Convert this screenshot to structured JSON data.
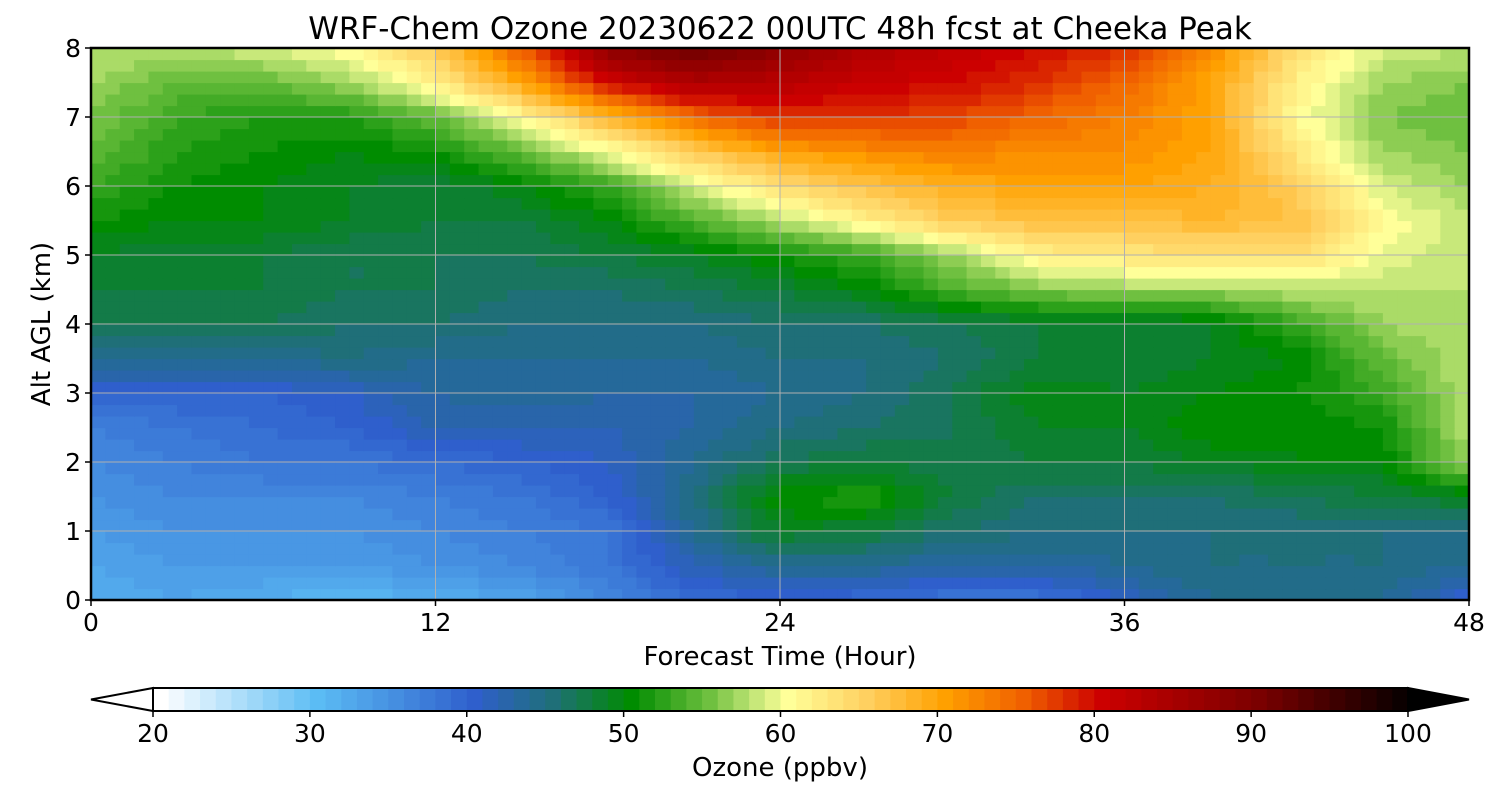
{
  "chart_data": {
    "type": "heatmap",
    "title": "WRF-Chem Ozone  20230622 00UTC 48h fcst at Cheeka Peak",
    "xlabel": "Forecast Time (Hour)",
    "ylabel": "Alt AGL (km)",
    "xlim": [
      0,
      48
    ],
    "ylim": [
      0,
      8
    ],
    "xticks": [
      0,
      12,
      24,
      36,
      48
    ],
    "yticks": [
      0,
      1,
      2,
      3,
      4,
      5,
      6,
      7,
      8
    ],
    "grid": true,
    "colorbar": {
      "label": "Ozone  (ppbv)",
      "min": 20,
      "max": 100,
      "ticks": [
        20,
        30,
        40,
        50,
        60,
        70,
        80,
        90,
        100
      ],
      "extend": "both",
      "orientation": "horizontal",
      "stops": [
        {
          "value": 20,
          "color": "#ffffff"
        },
        {
          "value": 30,
          "color": "#5bbcf4"
        },
        {
          "value": 40,
          "color": "#2f5fcc"
        },
        {
          "value": 45,
          "color": "#1f6f78"
        },
        {
          "value": 50,
          "color": "#008c00"
        },
        {
          "value": 55,
          "color": "#6fc040"
        },
        {
          "value": 58,
          "color": "#c8e87a"
        },
        {
          "value": 60,
          "color": "#ffff99"
        },
        {
          "value": 65,
          "color": "#ffd060"
        },
        {
          "value": 70,
          "color": "#ffa000"
        },
        {
          "value": 75,
          "color": "#f06000"
        },
        {
          "value": 80,
          "color": "#cc0000"
        },
        {
          "value": 90,
          "color": "#7a0000"
        },
        {
          "value": 100,
          "color": "#000000"
        }
      ]
    },
    "x": [
      0,
      3,
      6,
      9,
      12,
      15,
      18,
      21,
      24,
      27,
      30,
      33,
      36,
      39,
      42,
      45,
      48
    ],
    "y": [
      0,
      0.5,
      1,
      1.5,
      2,
      2.5,
      3,
      3.5,
      4,
      4.5,
      5,
      5.5,
      6,
      6.5,
      7,
      7.5,
      8
    ],
    "z": [
      [
        32,
        33,
        32,
        31,
        32,
        33,
        36,
        39,
        40,
        39,
        38,
        38,
        41,
        44,
        45,
        44,
        40
      ],
      [
        33,
        34,
        34,
        34,
        35,
        36,
        38,
        42,
        44,
        44,
        43,
        43,
        44,
        45,
        45,
        45,
        44
      ],
      [
        34,
        35,
        35,
        35,
        36,
        37,
        38,
        44,
        49,
        48,
        46,
        45,
        45,
        45,
        45,
        45,
        45
      ],
      [
        35,
        36,
        36,
        36,
        37,
        38,
        40,
        45,
        51,
        52,
        48,
        46,
        46,
        46,
        47,
        48,
        49
      ],
      [
        36,
        37,
        38,
        38,
        39,
        40,
        41,
        44,
        47,
        48,
        47,
        48,
        48,
        49,
        50,
        50,
        57
      ],
      [
        37,
        38,
        39,
        40,
        42,
        42,
        42,
        43,
        45,
        46,
        47,
        49,
        49,
        51,
        50,
        51,
        58
      ],
      [
        40,
        40,
        40,
        41,
        43,
        44,
        43,
        43,
        44,
        45,
        47,
        50,
        49,
        50,
        51,
        53,
        58
      ],
      [
        44,
        44,
        44,
        45,
        44,
        44,
        44,
        44,
        45,
        45,
        46,
        48,
        48,
        49,
        50,
        55,
        58
      ],
      [
        47,
        47,
        47,
        46,
        46,
        45,
        45,
        45,
        46,
        46,
        47,
        48,
        48,
        49,
        53,
        57,
        58
      ],
      [
        48,
        48,
        48,
        47,
        47,
        46,
        46,
        47,
        48,
        50,
        54,
        56,
        57,
        57,
        58,
        58,
        58
      ],
      [
        49,
        48,
        48,
        47,
        47,
        47,
        48,
        49,
        51,
        53,
        57,
        62,
        63,
        64,
        64,
        60,
        58
      ],
      [
        51,
        50,
        50,
        49,
        48,
        48,
        50,
        54,
        58,
        62,
        66,
        67,
        67,
        68,
        67,
        61,
        58
      ],
      [
        53,
        51,
        50,
        49,
        48,
        50,
        53,
        59,
        64,
        67,
        69,
        70,
        70,
        69,
        66,
        59,
        57
      ],
      [
        55,
        52,
        51,
        50,
        51,
        55,
        60,
        66,
        70,
        72,
        73,
        72,
        72,
        70,
        63,
        57,
        56
      ],
      [
        56,
        53,
        52,
        52,
        55,
        61,
        68,
        75,
        78,
        78,
        77,
        75,
        73,
        70,
        61,
        56,
        55
      ],
      [
        57,
        55,
        55,
        57,
        62,
        70,
        80,
        84,
        83,
        81,
        80,
        78,
        75,
        70,
        62,
        57,
        56
      ],
      [
        58,
        58,
        59,
        61,
        66,
        76,
        88,
        92,
        88,
        84,
        82,
        80,
        78,
        72,
        64,
        59,
        58
      ]
    ]
  }
}
